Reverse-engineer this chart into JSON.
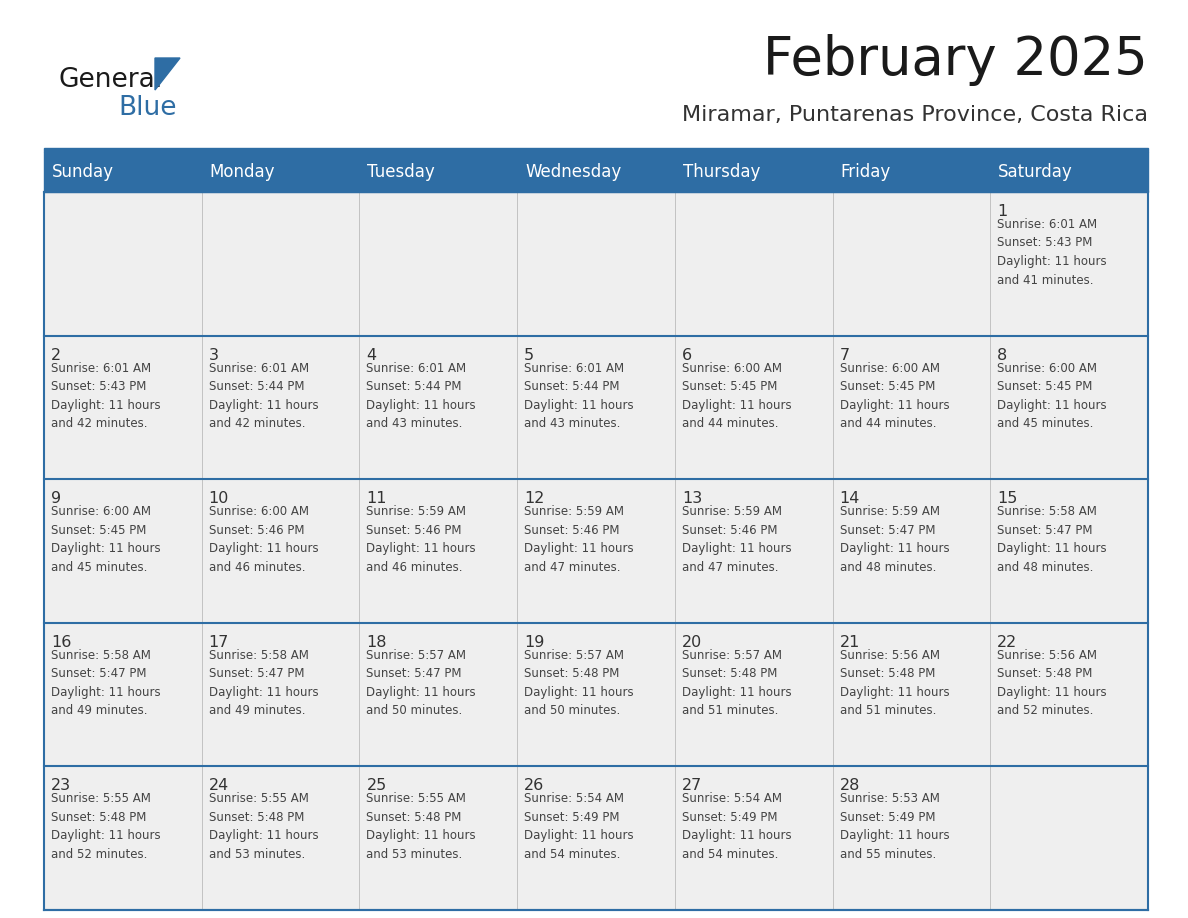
{
  "title": "February 2025",
  "subtitle": "Miramar, Puntarenas Province, Costa Rica",
  "header_bg": "#2E6DA4",
  "header_text_color": "#FFFFFF",
  "cell_bg": "#EFEFEF",
  "cell_bg_white": "#FFFFFF",
  "day_number_color": "#333333",
  "info_text_color": "#444444",
  "border_color": "#2E6DA4",
  "days_of_week": [
    "Sunday",
    "Monday",
    "Tuesday",
    "Wednesday",
    "Thursday",
    "Friday",
    "Saturday"
  ],
  "weeks": [
    [
      {
        "day": null,
        "info": null
      },
      {
        "day": null,
        "info": null
      },
      {
        "day": null,
        "info": null
      },
      {
        "day": null,
        "info": null
      },
      {
        "day": null,
        "info": null
      },
      {
        "day": null,
        "info": null
      },
      {
        "day": 1,
        "info": "Sunrise: 6:01 AM\nSunset: 5:43 PM\nDaylight: 11 hours\nand 41 minutes."
      }
    ],
    [
      {
        "day": 2,
        "info": "Sunrise: 6:01 AM\nSunset: 5:43 PM\nDaylight: 11 hours\nand 42 minutes."
      },
      {
        "day": 3,
        "info": "Sunrise: 6:01 AM\nSunset: 5:44 PM\nDaylight: 11 hours\nand 42 minutes."
      },
      {
        "day": 4,
        "info": "Sunrise: 6:01 AM\nSunset: 5:44 PM\nDaylight: 11 hours\nand 43 minutes."
      },
      {
        "day": 5,
        "info": "Sunrise: 6:01 AM\nSunset: 5:44 PM\nDaylight: 11 hours\nand 43 minutes."
      },
      {
        "day": 6,
        "info": "Sunrise: 6:00 AM\nSunset: 5:45 PM\nDaylight: 11 hours\nand 44 minutes."
      },
      {
        "day": 7,
        "info": "Sunrise: 6:00 AM\nSunset: 5:45 PM\nDaylight: 11 hours\nand 44 minutes."
      },
      {
        "day": 8,
        "info": "Sunrise: 6:00 AM\nSunset: 5:45 PM\nDaylight: 11 hours\nand 45 minutes."
      }
    ],
    [
      {
        "day": 9,
        "info": "Sunrise: 6:00 AM\nSunset: 5:45 PM\nDaylight: 11 hours\nand 45 minutes."
      },
      {
        "day": 10,
        "info": "Sunrise: 6:00 AM\nSunset: 5:46 PM\nDaylight: 11 hours\nand 46 minutes."
      },
      {
        "day": 11,
        "info": "Sunrise: 5:59 AM\nSunset: 5:46 PM\nDaylight: 11 hours\nand 46 minutes."
      },
      {
        "day": 12,
        "info": "Sunrise: 5:59 AM\nSunset: 5:46 PM\nDaylight: 11 hours\nand 47 minutes."
      },
      {
        "day": 13,
        "info": "Sunrise: 5:59 AM\nSunset: 5:46 PM\nDaylight: 11 hours\nand 47 minutes."
      },
      {
        "day": 14,
        "info": "Sunrise: 5:59 AM\nSunset: 5:47 PM\nDaylight: 11 hours\nand 48 minutes."
      },
      {
        "day": 15,
        "info": "Sunrise: 5:58 AM\nSunset: 5:47 PM\nDaylight: 11 hours\nand 48 minutes."
      }
    ],
    [
      {
        "day": 16,
        "info": "Sunrise: 5:58 AM\nSunset: 5:47 PM\nDaylight: 11 hours\nand 49 minutes."
      },
      {
        "day": 17,
        "info": "Sunrise: 5:58 AM\nSunset: 5:47 PM\nDaylight: 11 hours\nand 49 minutes."
      },
      {
        "day": 18,
        "info": "Sunrise: 5:57 AM\nSunset: 5:47 PM\nDaylight: 11 hours\nand 50 minutes."
      },
      {
        "day": 19,
        "info": "Sunrise: 5:57 AM\nSunset: 5:48 PM\nDaylight: 11 hours\nand 50 minutes."
      },
      {
        "day": 20,
        "info": "Sunrise: 5:57 AM\nSunset: 5:48 PM\nDaylight: 11 hours\nand 51 minutes."
      },
      {
        "day": 21,
        "info": "Sunrise: 5:56 AM\nSunset: 5:48 PM\nDaylight: 11 hours\nand 51 minutes."
      },
      {
        "day": 22,
        "info": "Sunrise: 5:56 AM\nSunset: 5:48 PM\nDaylight: 11 hours\nand 52 minutes."
      }
    ],
    [
      {
        "day": 23,
        "info": "Sunrise: 5:55 AM\nSunset: 5:48 PM\nDaylight: 11 hours\nand 52 minutes."
      },
      {
        "day": 24,
        "info": "Sunrise: 5:55 AM\nSunset: 5:48 PM\nDaylight: 11 hours\nand 53 minutes."
      },
      {
        "day": 25,
        "info": "Sunrise: 5:55 AM\nSunset: 5:48 PM\nDaylight: 11 hours\nand 53 minutes."
      },
      {
        "day": 26,
        "info": "Sunrise: 5:54 AM\nSunset: 5:49 PM\nDaylight: 11 hours\nand 54 minutes."
      },
      {
        "day": 27,
        "info": "Sunrise: 5:54 AM\nSunset: 5:49 PM\nDaylight: 11 hours\nand 54 minutes."
      },
      {
        "day": 28,
        "info": "Sunrise: 5:53 AM\nSunset: 5:49 PM\nDaylight: 11 hours\nand 55 minutes."
      },
      {
        "day": null,
        "info": null
      }
    ]
  ],
  "logo_text_general": "General",
  "logo_text_blue": "Blue",
  "logo_color_general": "#1a1a1a",
  "logo_color_blue": "#2E6DA4",
  "logo_triangle_color": "#2E6DA4"
}
